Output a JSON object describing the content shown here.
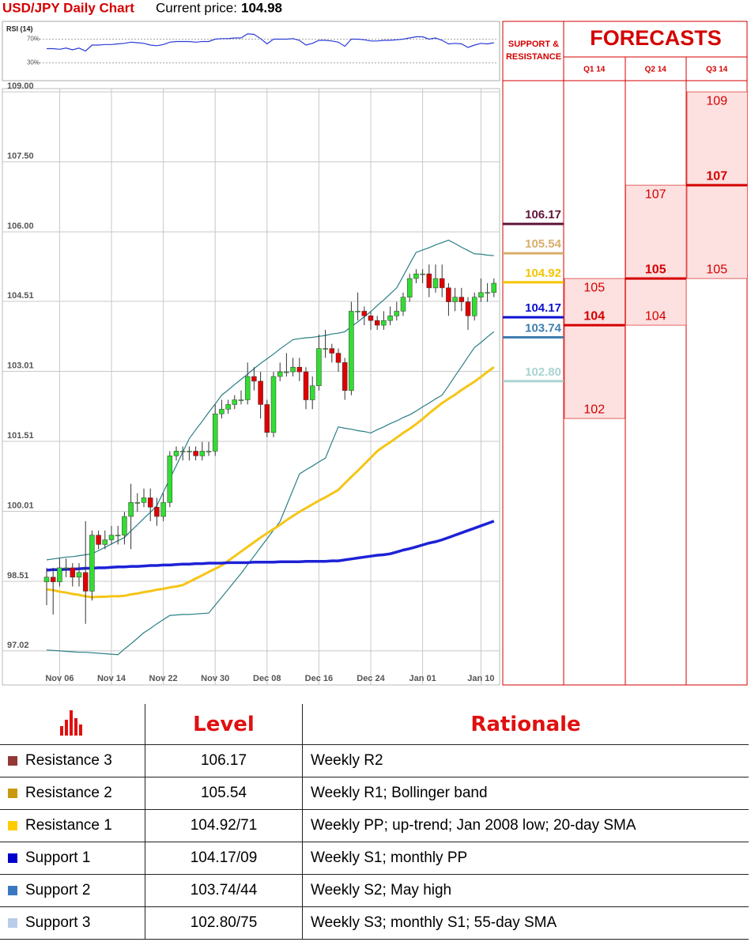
{
  "header": {
    "title": "USD/JPY Daily Chart",
    "price_label": "Current price:",
    "price": 104.98
  },
  "chart_data": [
    {
      "type": "line",
      "title": "RSI (14)",
      "color": "#2b3bd6",
      "ylim": [
        0,
        100
      ],
      "yticks": [
        {
          "value": 70,
          "label": "70%"
        },
        {
          "value": 30,
          "label": "30%"
        }
      ],
      "values": [
        54,
        54,
        53,
        55,
        52,
        55,
        50,
        60,
        60,
        61,
        61,
        62,
        63,
        65,
        64,
        63,
        60,
        59,
        61,
        65,
        66,
        66,
        66,
        65,
        66,
        66,
        70,
        71,
        71,
        72,
        72,
        79,
        78,
        71,
        62,
        70,
        70,
        70,
        71,
        68,
        60,
        63,
        68,
        68,
        67,
        65,
        58,
        70,
        70,
        69,
        67,
        67,
        68,
        68,
        69,
        70,
        72,
        74,
        74,
        70,
        72,
        68,
        62,
        63,
        62,
        56,
        60,
        63,
        62,
        64
      ]
    },
    {
      "type": "candlestick",
      "grid": true,
      "up_color": "#33dd33",
      "down_color": "#e00000",
      "ylim": [
        96.29,
        109.07
      ],
      "yticks": [
        {
          "value": 97.02,
          "label": "97.02"
        },
        98.51,
        100.01,
        101.51,
        103.01,
        104.51,
        {
          "value": 106,
          "label": "106.00"
        },
        {
          "value": 107.5,
          "label": "107.50"
        },
        {
          "value": 109,
          "label": "109.00"
        }
      ],
      "categories": [
        null,
        null,
        "Nov 06",
        null,
        null,
        null,
        null,
        null,
        null,
        null,
        "Nov 14",
        null,
        null,
        null,
        null,
        null,
        null,
        null,
        "Nov 22",
        null,
        null,
        null,
        null,
        null,
        null,
        null,
        "Nov 30",
        null,
        null,
        null,
        null,
        null,
        null,
        null,
        "Dec 08",
        null,
        null,
        null,
        null,
        null,
        null,
        null,
        "Dec 16",
        null,
        null,
        null,
        null,
        null,
        null,
        null,
        "Dec 24",
        null,
        null,
        null,
        null,
        null,
        null,
        null,
        "Jan 01",
        null,
        null,
        null,
        null,
        null,
        null,
        null,
        null,
        "Jan 10",
        null,
        null
      ],
      "open": [
        98.5,
        98.6,
        98.5,
        98.8,
        98.8,
        98.6,
        98.7,
        98.3,
        99.5,
        99.3,
        99.4,
        99.5,
        99.5,
        99.9,
        100.2,
        100.2,
        100.3,
        100.1,
        99.9,
        100.2,
        101.2,
        101.3,
        101.3,
        101.3,
        101.2,
        101.3,
        101.3,
        102.1,
        102.2,
        102.3,
        102.4,
        102.4,
        102.9,
        102.8,
        102.3,
        101.7,
        102.9,
        103.0,
        103.0,
        103.1,
        103.0,
        102.4,
        102.7,
        103.5,
        103.5,
        103.4,
        103.2,
        102.6,
        104.3,
        104.3,
        104.2,
        104.1,
        104.0,
        104.1,
        104.2,
        104.3,
        104.6,
        105.0,
        105.1,
        105.1,
        104.8,
        105.0,
        104.8,
        104.5,
        104.6,
        104.5,
        104.2,
        104.6,
        104.7,
        104.7
      ],
      "high": [
        98.8,
        98.8,
        99.0,
        99.0,
        98.9,
        98.9,
        99.8,
        99.6,
        99.6,
        99.6,
        99.7,
        99.7,
        100.0,
        100.6,
        100.4,
        100.5,
        100.5,
        100.3,
        100.4,
        101.3,
        101.4,
        101.4,
        101.4,
        101.4,
        101.5,
        101.5,
        102.3,
        102.4,
        102.4,
        102.5,
        102.6,
        103.2,
        103.1,
        103.0,
        102.4,
        103.0,
        103.2,
        103.4,
        103.3,
        103.3,
        103.1,
        102.9,
        103.8,
        103.9,
        103.6,
        103.5,
        103.3,
        104.5,
        104.7,
        104.4,
        104.3,
        104.2,
        104.3,
        104.4,
        104.5,
        104.7,
        105.1,
        105.2,
        105.2,
        105.3,
        105.3,
        105.3,
        104.9,
        104.8,
        104.8,
        104.6,
        104.7,
        105.0,
        104.9,
        105.0
      ],
      "low": [
        98.0,
        97.8,
        98.4,
        98.6,
        98.4,
        98.4,
        97.6,
        98.1,
        99.2,
        99.2,
        99.3,
        99.3,
        99.3,
        99.2,
        100.0,
        100.1,
        99.8,
        99.7,
        99.8,
        100.1,
        101.1,
        101.1,
        101.1,
        101.1,
        101.1,
        101.2,
        101.2,
        102.0,
        102.1,
        102.2,
        102.3,
        102.3,
        102.6,
        102.0,
        101.6,
        101.6,
        102.8,
        102.9,
        102.9,
        102.8,
        102.2,
        102.2,
        102.6,
        103.3,
        103.2,
        103.0,
        102.4,
        102.5,
        104.1,
        104.0,
        103.9,
        103.9,
        103.9,
        104.0,
        104.1,
        104.2,
        104.5,
        104.9,
        104.9,
        104.6,
        104.7,
        104.6,
        104.2,
        104.3,
        104.3,
        103.9,
        104.1,
        104.5,
        104.5,
        104.6
      ],
      "close": [
        98.6,
        98.5,
        98.8,
        98.8,
        98.6,
        98.7,
        98.3,
        99.5,
        99.3,
        99.4,
        99.5,
        99.5,
        99.9,
        100.2,
        100.2,
        100.3,
        100.1,
        99.9,
        100.2,
        101.2,
        101.3,
        101.3,
        101.3,
        101.2,
        101.3,
        101.3,
        102.1,
        102.2,
        102.3,
        102.4,
        102.4,
        102.9,
        102.8,
        102.3,
        101.7,
        102.9,
        103.0,
        103.0,
        103.1,
        103.0,
        102.4,
        102.7,
        103.5,
        103.5,
        103.4,
        103.2,
        102.6,
        104.3,
        104.3,
        104.2,
        104.1,
        104.0,
        104.1,
        104.2,
        104.3,
        104.6,
        105.0,
        105.1,
        105.1,
        104.8,
        105.0,
        104.8,
        104.5,
        104.6,
        104.5,
        104.2,
        104.6,
        104.7,
        104.7,
        104.9
      ],
      "series": [
        {
          "color": "#2a7f85",
          "width": 1.2,
          "values": [
            98.97,
            98.99,
            99.01,
            99.03,
            99.04,
            99.06,
            99.08,
            99.1,
            99.17,
            99.24,
            99.31,
            99.38,
            99.45,
            99.59,
            99.72,
            99.86,
            99.99,
            100.13,
            100.42,
            100.71,
            100.99,
            101.28,
            101.57,
            101.76,
            101.94,
            102.13,
            102.31,
            102.5,
            102.61,
            102.73,
            102.84,
            102.95,
            103.07,
            103.18,
            103.28,
            103.38,
            103.49,
            103.59,
            103.69,
            103.71,
            103.73,
            103.74,
            103.76,
            103.78,
            103.81,
            103.83,
            103.86,
            103.97,
            104.07,
            104.18,
            104.29,
            104.42,
            104.54,
            104.67,
            104.8,
            105.05,
            105.31,
            105.56,
            105.61,
            105.66,
            105.72,
            105.77,
            105.82,
            105.75,
            105.67,
            105.6,
            105.53,
            105.52,
            105.5,
            105.49
          ]
        },
        {
          "color": "#2a7f85",
          "width": 1.2,
          "values": [
            97.04,
            97.03,
            97.02,
            97.01,
            97.0,
            96.99,
            96.99,
            96.98,
            96.97,
            96.96,
            96.95,
            96.94,
            97.06,
            97.17,
            97.29,
            97.41,
            97.5,
            97.6,
            97.69,
            97.78,
            97.79,
            97.8,
            97.8,
            97.81,
            97.82,
            97.83,
            98.0,
            98.17,
            98.34,
            98.51,
            98.68,
            98.87,
            99.05,
            99.24,
            99.42,
            99.61,
            99.79,
            100.13,
            100.47,
            100.81,
            100.9,
            100.98,
            101.07,
            101.15,
            101.49,
            101.82,
            101.79,
            101.77,
            101.74,
            101.72,
            101.69,
            101.76,
            101.82,
            101.89,
            101.95,
            102.02,
            102.08,
            102.16,
            102.25,
            102.33,
            102.42,
            102.5,
            102.7,
            102.91,
            103.11,
            103.32,
            103.52,
            103.63,
            103.75,
            103.86
          ]
        },
        {
          "color": "#f5c518",
          "width": 3,
          "values": [
            98.34,
            98.32,
            98.29,
            98.27,
            98.24,
            98.22,
            98.19,
            98.17,
            98.18,
            98.18,
            98.19,
            98.19,
            98.2,
            98.23,
            98.25,
            98.28,
            98.3,
            98.33,
            98.35,
            98.38,
            98.4,
            98.43,
            98.5,
            98.57,
            98.64,
            98.71,
            98.78,
            98.85,
            98.95,
            99.05,
            99.15,
            99.25,
            99.35,
            99.45,
            99.54,
            99.63,
            99.72,
            99.82,
            99.91,
            100.0,
            100.08,
            100.16,
            100.24,
            100.31,
            100.39,
            100.47,
            100.61,
            100.75,
            100.88,
            101.02,
            101.16,
            101.3,
            101.4,
            101.49,
            101.59,
            101.69,
            101.78,
            101.88,
            101.99,
            102.11,
            102.22,
            102.33,
            102.42,
            102.51,
            102.61,
            102.7,
            102.79,
            102.89,
            103.0,
            103.1
          ]
        },
        {
          "color": "#1d22d6",
          "width": 3.5,
          "values": [
            98.75,
            98.76,
            98.76,
            98.77,
            98.77,
            98.78,
            98.79,
            98.79,
            98.8,
            98.8,
            98.81,
            98.82,
            98.82,
            98.83,
            98.83,
            98.84,
            98.85,
            98.85,
            98.86,
            98.86,
            98.87,
            98.88,
            98.88,
            98.89,
            98.89,
            98.9,
            98.9,
            98.9,
            98.91,
            98.91,
            98.91,
            98.91,
            98.92,
            98.92,
            98.92,
            98.92,
            98.93,
            98.93,
            98.93,
            98.93,
            98.94,
            98.94,
            98.94,
            98.94,
            98.95,
            98.95,
            98.97,
            98.99,
            99.01,
            99.03,
            99.05,
            99.07,
            99.08,
            99.1,
            99.14,
            99.18,
            99.21,
            99.25,
            99.29,
            99.33,
            99.36,
            99.4,
            99.45,
            99.5,
            99.55,
            99.6,
            99.65,
            99.7,
            99.75,
            99.8
          ]
        }
      ]
    }
  ],
  "support_resistance": {
    "title": "SUPPORT & RESISTANCE",
    "levels": [
      {
        "value": 106.17,
        "color": "#5e1638"
      },
      {
        "value": 105.54,
        "color": "#d9ae6c"
      },
      {
        "value": 104.92,
        "color": "#f5c400"
      },
      {
        "value": 104.17,
        "color": "#0a10d0"
      },
      {
        "value": 103.74,
        "color": "#3f7fb0"
      },
      {
        "value": 102.8,
        "label": "102.80",
        "color": "#a9d4d2"
      }
    ]
  },
  "forecasts": {
    "title": "FORECASTS",
    "quarters": [
      {
        "label": "Q1 14",
        "high": 105,
        "mid": 104,
        "low": 102
      },
      {
        "label": "Q2 14",
        "high": 107,
        "mid": 105,
        "low": 104
      },
      {
        "label": "Q3 14",
        "high": 109,
        "mid": 107,
        "low": 105
      }
    ]
  },
  "table": {
    "headers": [
      "Level",
      "Rationale"
    ],
    "rows": [
      {
        "color": "#943737",
        "cells": [
          "Resistance 3",
          "106.17",
          "Weekly R2"
        ]
      },
      {
        "color": "#c9980c",
        "cells": [
          "Resistance 2",
          "105.54",
          "Weekly R1; Bollinger band"
        ]
      },
      {
        "color": "#ffcc00",
        "cells": [
          "Resistance 1",
          "104.92/71",
          "Weekly PP; up-trend; Jan 2008 low; 20-day SMA"
        ]
      },
      {
        "color": "#0000cc",
        "cells": [
          "Support 1",
          "104.17/09",
          "Weekly S1; monthly PP"
        ]
      },
      {
        "color": "#3b78c2",
        "cells": [
          "Support 2",
          "103.74/44",
          "Weekly S2; May high"
        ]
      },
      {
        "color": "#b7cde9",
        "cells": [
          "Support 3",
          "102.80/75",
          "Weekly S3; monthly S1; 55-day SMA"
        ]
      }
    ]
  }
}
